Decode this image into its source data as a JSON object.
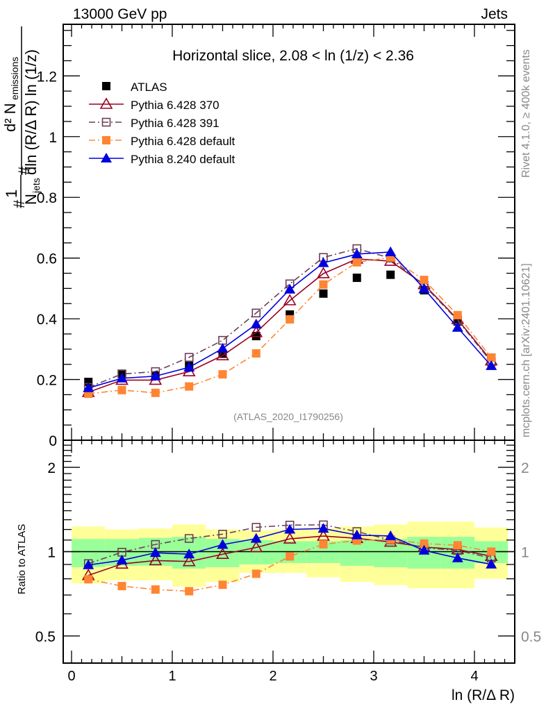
{
  "header": {
    "left": "13000 GeV pp",
    "right": "Jets"
  },
  "side_labels": {
    "rivet": "Rivet 4.1.0, ≥ 400k events",
    "mcplots": "mcplots.cern.ch [arXiv:2401.10621]"
  },
  "chart_data": [
    {
      "type": "line",
      "panel": "main",
      "title": "Horizontal slice, 2.08 < ln (1/z) < 2.36",
      "watermark": "(ATLAS_2020_I1790256)",
      "xlabel": "ln (R/Δ R)",
      "ylabel_parts": {
        "prefix": "#",
        "one": "1",
        "njets": "N",
        "njets_sub": "jets",
        "hash2": "#",
        "num": "d² N",
        "num_sub": "emissions",
        "den": "dln (R/Δ R) ln (1/z)"
      },
      "xlim": [
        -0.08,
        4.4
      ],
      "ylim": [
        0,
        1.37
      ],
      "yticks": [
        0,
        0.2,
        0.4,
        0.6,
        0.8,
        1,
        1.2
      ],
      "ytick_labels": [
        "0",
        "0.2",
        "0.4",
        "0.6",
        "0.8",
        "1",
        "1.2"
      ],
      "legend_position": "top-left",
      "x": [
        0.167,
        0.5,
        0.833,
        1.167,
        1.5,
        1.833,
        2.167,
        2.5,
        2.833,
        3.167,
        3.5,
        3.833,
        4.167
      ],
      "series": [
        {
          "name": "ATLAS",
          "color": "#000000",
          "marker": "square-filled",
          "line": "none",
          "values": [
            0.192,
            0.219,
            0.213,
            0.245,
            0.285,
            0.343,
            0.414,
            0.483,
            0.535,
            0.545,
            0.494,
            0.391,
            0.272
          ]
        },
        {
          "name": "Pythia 6.428 370",
          "color": "#990022",
          "marker": "triangle-open",
          "line": "solid",
          "values": [
            0.158,
            0.198,
            0.198,
            0.226,
            0.279,
            0.355,
            0.46,
            0.549,
            0.597,
            0.59,
            0.513,
            0.398,
            0.262
          ]
        },
        {
          "name": "Pythia 6.428 391",
          "color": "#6b3d56",
          "marker": "square-open",
          "line": "dashdot",
          "values": [
            0.174,
            0.218,
            0.226,
            0.273,
            0.329,
            0.419,
            0.515,
            0.602,
            0.631,
            0.6,
            0.51,
            0.395,
            0.258
          ]
        },
        {
          "name": "Pythia 6.428 default",
          "color": "#ff8533",
          "marker": "square-filled",
          "line": "dashdot",
          "values": [
            0.153,
            0.165,
            0.156,
            0.177,
            0.217,
            0.286,
            0.398,
            0.513,
            0.586,
            0.602,
            0.528,
            0.412,
            0.272
          ]
        },
        {
          "name": "Pythia 8.240 default",
          "color": "#0000dd",
          "marker": "triangle-filled",
          "line": "solid",
          "values": [
            0.172,
            0.204,
            0.211,
            0.24,
            0.302,
            0.382,
            0.497,
            0.584,
            0.613,
            0.62,
            0.499,
            0.371,
            0.245
          ]
        }
      ]
    },
    {
      "type": "line",
      "panel": "ratio",
      "ylabel": "Ratio to ATLAS",
      "xlabel": "ln (R/Δ R)",
      "yscale": "log",
      "ylim": [
        0.4,
        2.5
      ],
      "yticks": [
        0.5,
        1,
        2
      ],
      "ytick_labels": [
        "0.5",
        "1",
        "2"
      ],
      "xticks": [
        0,
        1,
        2,
        3,
        4
      ],
      "xtick_labels": [
        "0",
        "1",
        "2",
        "3",
        "4"
      ],
      "bin_edges": [
        0,
        0.333,
        0.667,
        1.0,
        1.333,
        1.667,
        2.0,
        2.333,
        2.667,
        3.0,
        3.333,
        3.667,
        4.0,
        4.333
      ],
      "band_total": {
        "color": "#ffff99",
        "low": [
          0.77,
          0.79,
          0.79,
          0.75,
          0.78,
          0.84,
          0.84,
          0.81,
          0.78,
          0.76,
          0.74,
          0.74,
          0.8
        ],
        "high": [
          1.23,
          1.2,
          1.21,
          1.25,
          1.2,
          1.19,
          1.2,
          1.21,
          1.23,
          1.25,
          1.28,
          1.28,
          1.22
        ]
      },
      "band_stat": {
        "color": "#99ff99",
        "low": [
          0.88,
          0.89,
          0.89,
          0.87,
          0.88,
          0.9,
          0.91,
          0.91,
          0.89,
          0.88,
          0.87,
          0.87,
          0.91
        ],
        "high": [
          1.11,
          1.11,
          1.12,
          1.13,
          1.11,
          1.1,
          1.09,
          1.09,
          1.1,
          1.11,
          1.13,
          1.13,
          1.09
        ]
      },
      "note": "ratios are series values / ATLAS values"
    }
  ]
}
